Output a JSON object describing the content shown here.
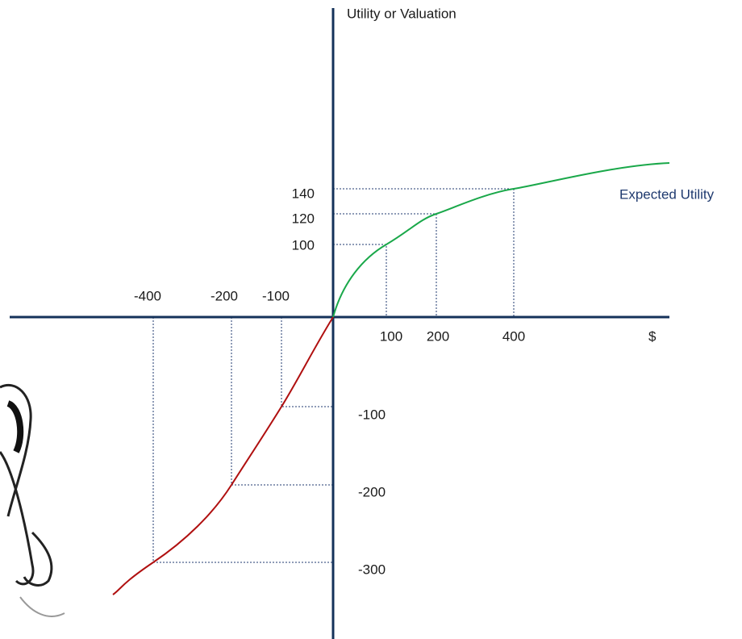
{
  "axis_title": "Utility or Valuation",
  "curve_label": "Expected Utility",
  "x_unit": "$",
  "x_tick_labels": [
    "-400",
    "-200",
    "-100",
    "100",
    "200",
    "400"
  ],
  "y_tick_labels": [
    "140",
    "120",
    "100",
    "-100",
    "-200",
    "-300"
  ]
}
